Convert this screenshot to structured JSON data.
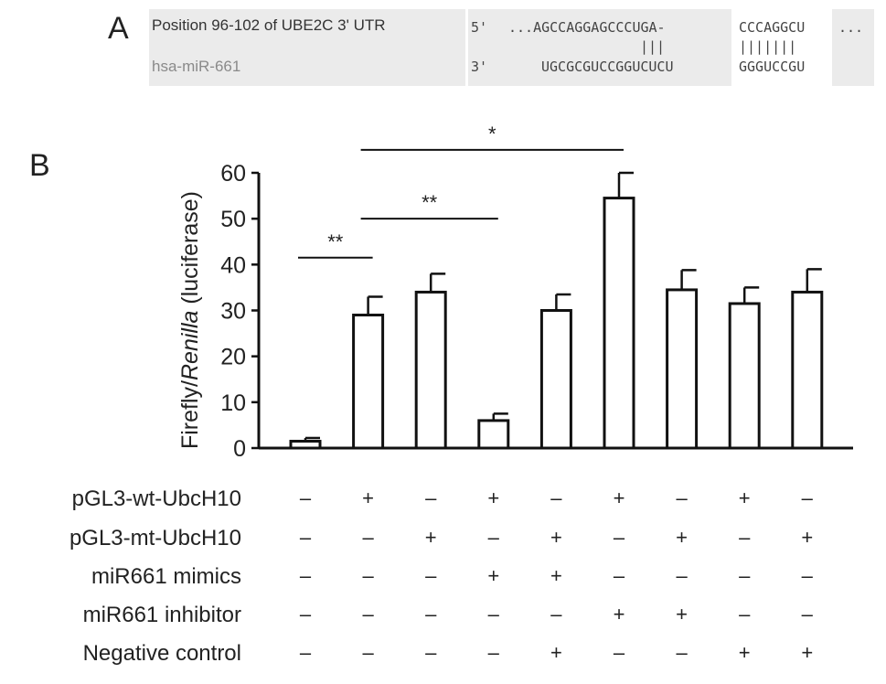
{
  "panel_a": {
    "label": "A",
    "utr_label": "Position 96-102 of UBE2C 3' UTR",
    "mirna_label": "hsa-miR-661",
    "utr_prime": "5'",
    "utr_seq_prefix": "...AGCCAGGAGCCCUGA-",
    "utr_seq_seed": "CCCAGGCU",
    "utr_seq_suffix": "...",
    "pair_marks_1": "|||",
    "pair_marks_2": "|||||||",
    "mirna_prime": "3'",
    "mirna_seq_prefix": "UGCGCGUCCGGUCUCU",
    "mirna_seq_seed": "GGGUCCGU"
  },
  "panel_b": {
    "label": "B",
    "conditions": [
      {
        "name": "pGL3-wt-UbcH10",
        "values": [
          "–",
          "+",
          "–",
          "+",
          "–",
          "+",
          "–",
          "+",
          "–"
        ]
      },
      {
        "name": "pGL3-mt-UbcH10",
        "values": [
          "–",
          "–",
          "+",
          "–",
          "+",
          "–",
          "+",
          "–",
          "+"
        ]
      },
      {
        "name": "miR661 mimics",
        "values": [
          "–",
          "–",
          "–",
          "+",
          "+",
          "–",
          "–",
          "–",
          "–"
        ]
      },
      {
        "name": "miR661 inhibitor",
        "values": [
          "–",
          "–",
          "–",
          "–",
          "–",
          "+",
          "+",
          "–",
          "–"
        ]
      },
      {
        "name": "Negative control",
        "values": [
          "–",
          "–",
          "–",
          "–",
          "+",
          "–",
          "–",
          "+",
          "+"
        ]
      }
    ]
  },
  "chart_data": {
    "type": "bar",
    "ylabel_prefix": "Firefly/",
    "ylabel_italic": "Renilla",
    "ylabel_suffix": " (luciferase)",
    "ylim": [
      0,
      60
    ],
    "yticks": [
      0,
      10,
      20,
      30,
      40,
      50,
      60
    ],
    "values": [
      1.5,
      29,
      34,
      6,
      30,
      54.5,
      34.5,
      31.5,
      34
    ],
    "errors": [
      0.7,
      4,
      4,
      1.5,
      3.5,
      5.5,
      4.3,
      3.5,
      5
    ],
    "significance": [
      {
        "from": 0,
        "to": 1,
        "label": "**",
        "y": 41.5
      },
      {
        "from": 1,
        "to": 3,
        "label": "**",
        "y": 50
      },
      {
        "from": 1,
        "to": 5,
        "label": "*",
        "y": 65
      }
    ]
  }
}
